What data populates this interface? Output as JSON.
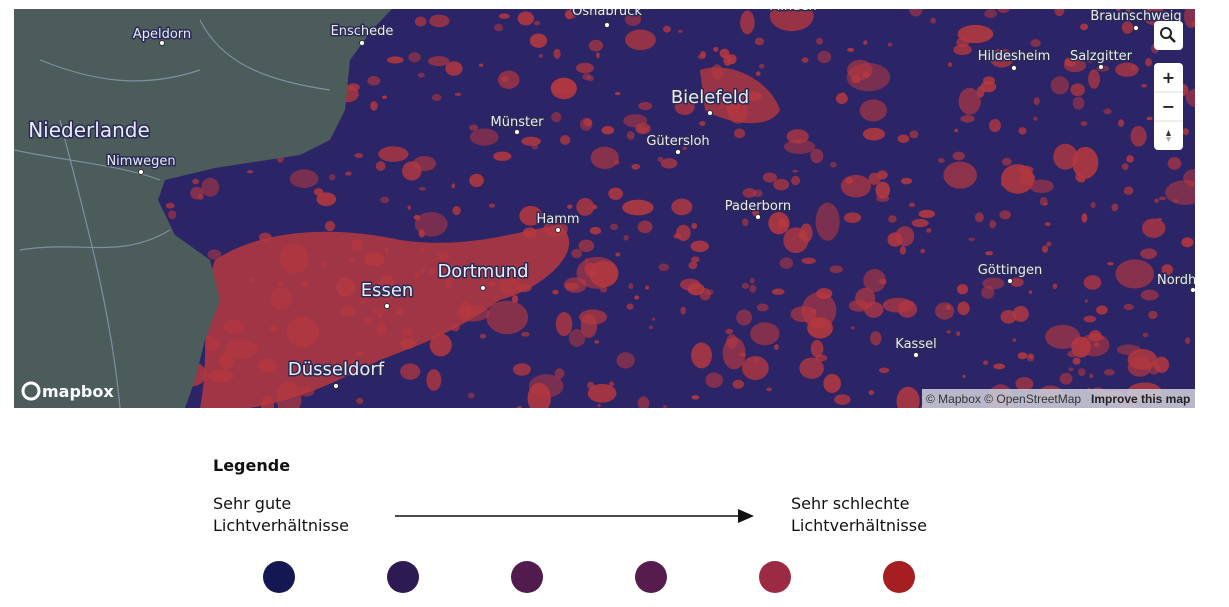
{
  "map": {
    "labels": [
      "Osnabrück",
      "Minden",
      "Braunschweig",
      "Hildesheim",
      "Salzgitter",
      "Apeldorn",
      "Enschede",
      "Niederlande",
      "Nimwegen",
      "Bielefeld",
      "Münster",
      "Gütersloh",
      "Paderborn",
      "Hamm",
      "Dortmund",
      "Essen",
      "Göttingen",
      "Nordh",
      "Kassel",
      "Düsseldorf"
    ],
    "logo": "mapbox",
    "attribution": "© Mapbox © OpenStreetMap",
    "improve": "Improve this map",
    "controls": {
      "zoom_in": "+",
      "zoom_out": "−"
    }
  },
  "legend": {
    "title": "Legende",
    "left": [
      "Sehr gute",
      "Lichtverhältnisse"
    ],
    "right": [
      "Sehr schlechte",
      "Lichtverhältnisse"
    ],
    "colors": [
      "#141852",
      "#2e1a52",
      "#521b4d",
      "#561c4e",
      "#9c2a42",
      "#a41e22"
    ]
  }
}
